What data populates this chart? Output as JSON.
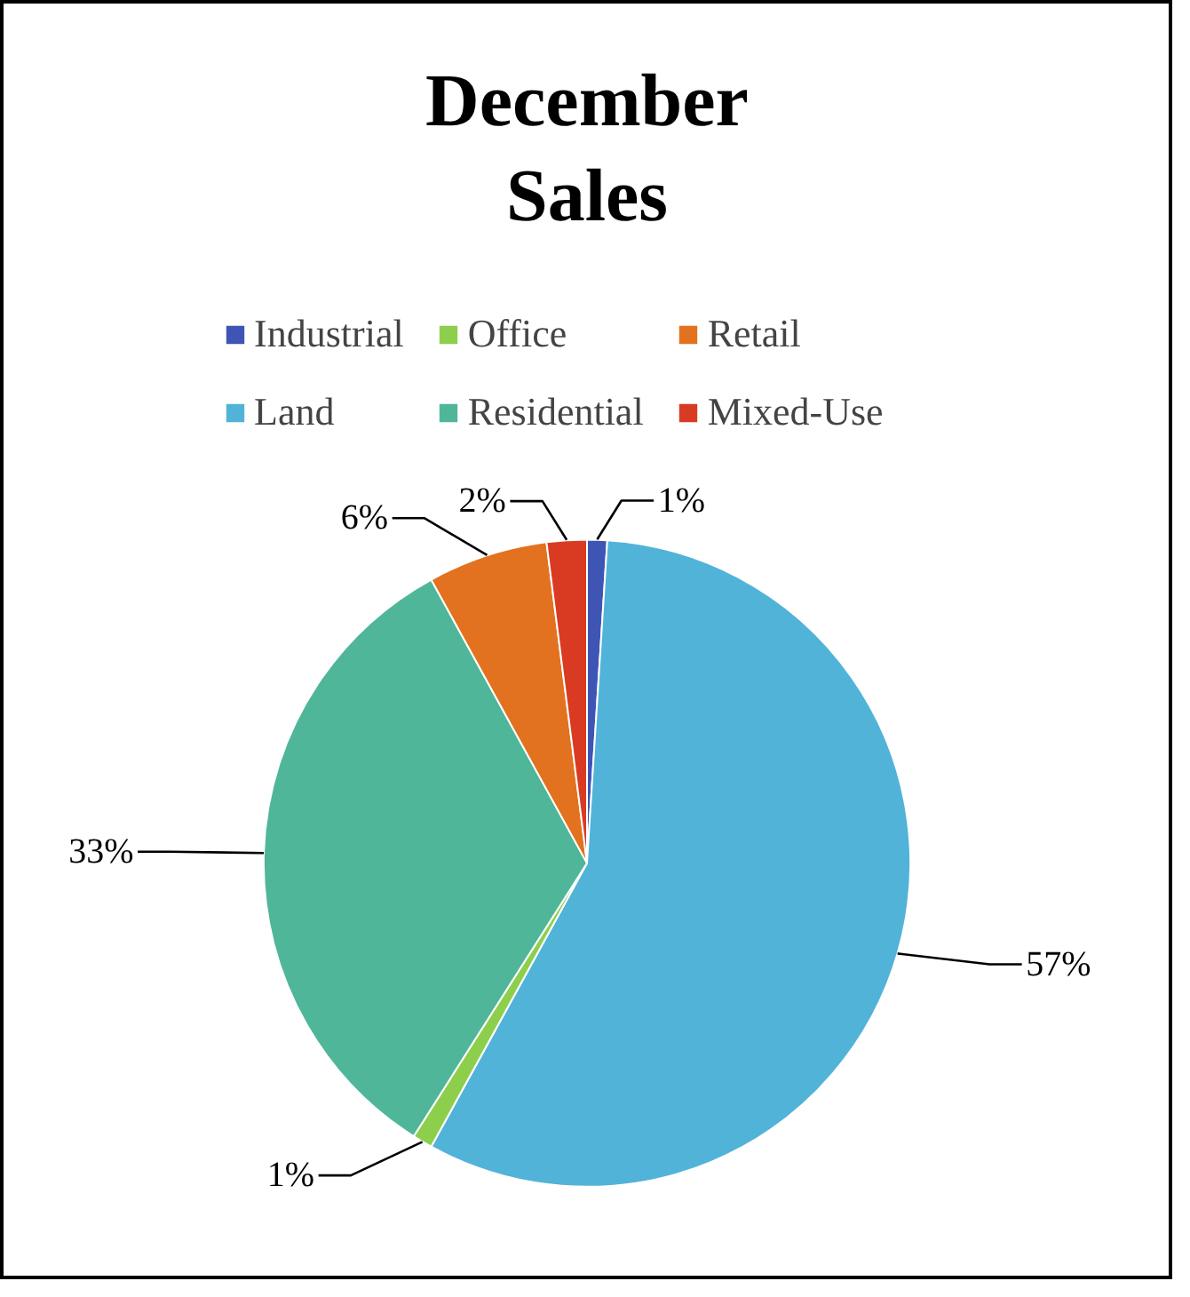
{
  "chart_data": {
    "type": "pie",
    "title": "December\nSales",
    "categories": [
      "Industrial",
      "Land",
      "Office",
      "Residential",
      "Retail",
      "Mixed-Use"
    ],
    "values": [
      1,
      57,
      1,
      33,
      6,
      2
    ],
    "colors": [
      "#3f55b5",
      "#52b3d9",
      "#8dcf4c",
      "#50b69a",
      "#e2721f",
      "#d93b22"
    ],
    "value_labels": [
      "1%",
      "57%",
      "1%",
      "33%",
      "6%",
      "2%"
    ],
    "legend": "top"
  }
}
